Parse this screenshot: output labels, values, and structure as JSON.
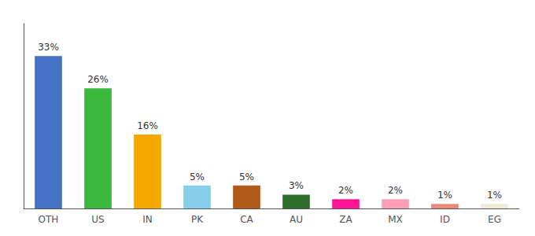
{
  "chart_data": {
    "type": "bar",
    "categories": [
      "OTH",
      "US",
      "IN",
      "PK",
      "CA",
      "AU",
      "ZA",
      "MX",
      "ID",
      "EG"
    ],
    "values": [
      33,
      26,
      16,
      5,
      5,
      3,
      2,
      2,
      1,
      1
    ],
    "value_labels": [
      "33%",
      "26%",
      "16%",
      "5%",
      "5%",
      "3%",
      "2%",
      "2%",
      "1%",
      "1%"
    ],
    "colors": [
      "#4472c4",
      "#3cb83c",
      "#f5a800",
      "#87ceeb",
      "#b05a1a",
      "#2d6e2d",
      "#ff1493",
      "#ff9eb5",
      "#e8897a",
      "#f0ead8"
    ],
    "ylim": [
      0,
      40
    ],
    "data_labels": true,
    "tick_labels": "x",
    "grid": false
  }
}
